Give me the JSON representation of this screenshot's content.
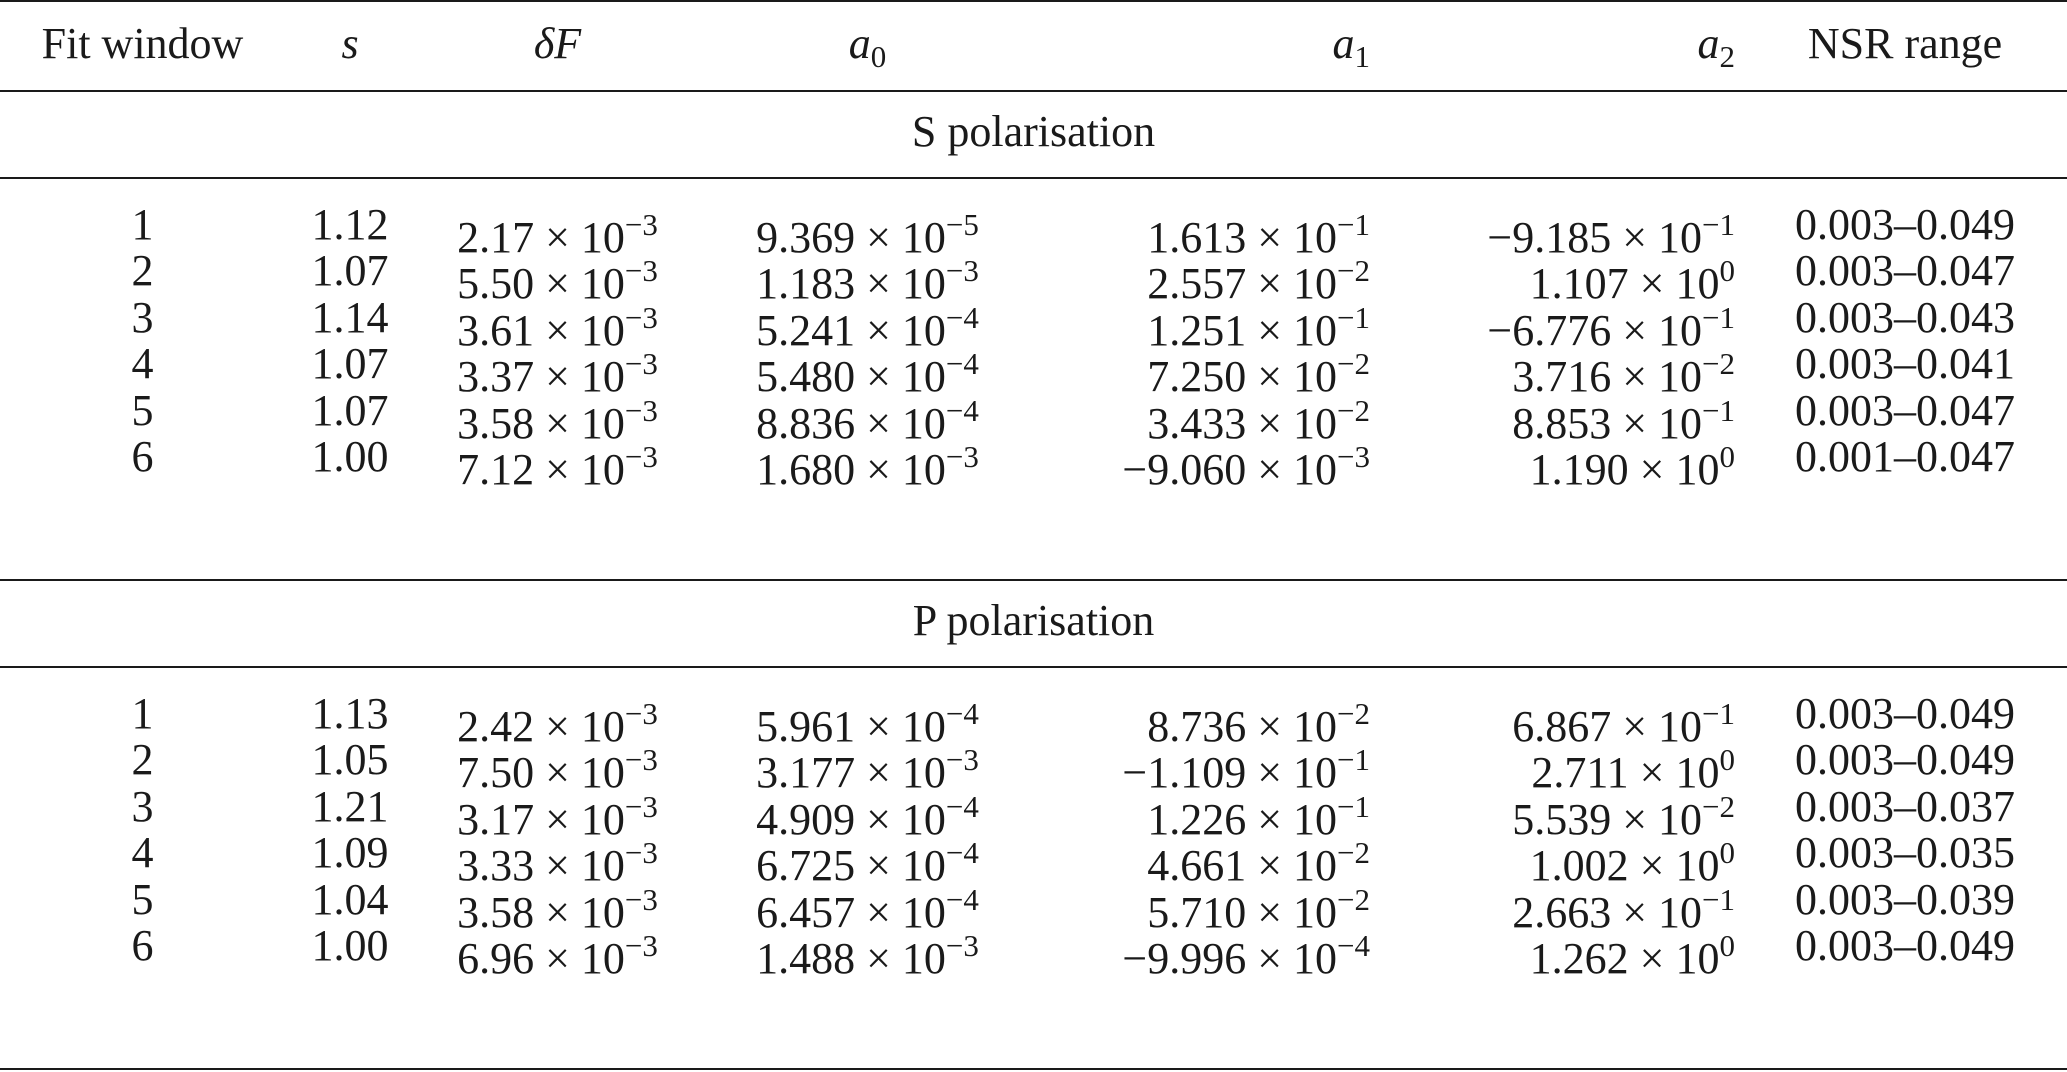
{
  "header": {
    "fit_window": "Fit window",
    "s": "s",
    "delta": "δ",
    "F": "F",
    "a": "a",
    "a0_sub": "0",
    "a1_sub": "1",
    "a2_sub": "2",
    "nsr": "NSR range"
  },
  "sections": [
    {
      "title": "S polarisation",
      "rows": [
        {
          "fit": "1",
          "s": "1.12",
          "dF_m": "2.17 × 10",
          "dF_e": "−3",
          "a0_m": "9.369 × 10",
          "a0_e": "−5",
          "a1_m": "1.613 × 10",
          "a1_e": "−1",
          "a2_m": "−9.185 × 10",
          "a2_e": "−1",
          "nsr": "0.003–0.049"
        },
        {
          "fit": "2",
          "s": "1.07",
          "dF_m": "5.50 × 10",
          "dF_e": "−3",
          "a0_m": "1.183 × 10",
          "a0_e": "−3",
          "a1_m": "2.557 × 10",
          "a1_e": "−2",
          "a2_m": "1.107 × 10",
          "a2_e": "0",
          "nsr": "0.003–0.047"
        },
        {
          "fit": "3",
          "s": "1.14",
          "dF_m": "3.61 × 10",
          "dF_e": "−3",
          "a0_m": "5.241 × 10",
          "a0_e": "−4",
          "a1_m": "1.251 × 10",
          "a1_e": "−1",
          "a2_m": "−6.776 × 10",
          "a2_e": "−1",
          "nsr": "0.003–0.043"
        },
        {
          "fit": "4",
          "s": "1.07",
          "dF_m": "3.37 × 10",
          "dF_e": "−3",
          "a0_m": "5.480 × 10",
          "a0_e": "−4",
          "a1_m": "7.250 × 10",
          "a1_e": "−2",
          "a2_m": "3.716 × 10",
          "a2_e": "−2",
          "nsr": "0.003–0.041"
        },
        {
          "fit": "5",
          "s": "1.07",
          "dF_m": "3.58 × 10",
          "dF_e": "−3",
          "a0_m": "8.836 × 10",
          "a0_e": "−4",
          "a1_m": "3.433 × 10",
          "a1_e": "−2",
          "a2_m": "8.853 × 10",
          "a2_e": "−1",
          "nsr": "0.003–0.047"
        },
        {
          "fit": "6",
          "s": "1.00",
          "dF_m": "7.12 × 10",
          "dF_e": "−3",
          "a0_m": "1.680 × 10",
          "a0_e": "−3",
          "a1_m": "−9.060 × 10",
          "a1_e": "−3",
          "a2_m": "1.190 × 10",
          "a2_e": "0",
          "nsr": "0.001–0.047"
        }
      ]
    },
    {
      "title": "P polarisation",
      "rows": [
        {
          "fit": "1",
          "s": "1.13",
          "dF_m": "2.42 × 10",
          "dF_e": "−3",
          "a0_m": "5.961 × 10",
          "a0_e": "−4",
          "a1_m": "8.736 × 10",
          "a1_e": "−2",
          "a2_m": "6.867 × 10",
          "a2_e": "−1",
          "nsr": "0.003–0.049"
        },
        {
          "fit": "2",
          "s": "1.05",
          "dF_m": "7.50 × 10",
          "dF_e": "−3",
          "a0_m": "3.177 × 10",
          "a0_e": "−3",
          "a1_m": "−1.109 × 10",
          "a1_e": "−1",
          "a2_m": "2.711 × 10",
          "a2_e": "0",
          "nsr": "0.003–0.049"
        },
        {
          "fit": "3",
          "s": "1.21",
          "dF_m": "3.17 × 10",
          "dF_e": "−3",
          "a0_m": "4.909 × 10",
          "a0_e": "−4",
          "a1_m": "1.226 × 10",
          "a1_e": "−1",
          "a2_m": "5.539 × 10",
          "a2_e": "−2",
          "nsr": "0.003–0.037"
        },
        {
          "fit": "4",
          "s": "1.09",
          "dF_m": "3.33 × 10",
          "dF_e": "−3",
          "a0_m": "6.725 × 10",
          "a0_e": "−4",
          "a1_m": "4.661 × 10",
          "a1_e": "−2",
          "a2_m": "1.002 × 10",
          "a2_e": "0",
          "nsr": "0.003–0.035"
        },
        {
          "fit": "5",
          "s": "1.04",
          "dF_m": "3.58 × 10",
          "dF_e": "−3",
          "a0_m": "6.457 × 10",
          "a0_e": "−4",
          "a1_m": "5.710 × 10",
          "a1_e": "−2",
          "a2_m": "2.663 × 10",
          "a2_e": "−1",
          "nsr": "0.003–0.039"
        },
        {
          "fit": "6",
          "s": "1.00",
          "dF_m": "6.96 × 10",
          "dF_e": "−3",
          "a0_m": "1.488 × 10",
          "a0_e": "−3",
          "a1_m": "−9.996 × 10",
          "a1_e": "−4",
          "a2_m": "1.262 × 10",
          "a2_e": "0",
          "nsr": "0.003–0.049"
        }
      ]
    }
  ]
}
